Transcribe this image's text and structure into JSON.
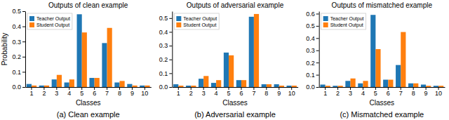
{
  "chart_data": [
    {
      "type": "bar",
      "title": "Outputs of clean example",
      "xlabel": "Classes",
      "ylabel": "Probability",
      "caption": "(a) Clean example",
      "categories": [
        1,
        2,
        3,
        4,
        5,
        6,
        7,
        8,
        9,
        10
      ],
      "series": [
        {
          "name": "Teacher Output",
          "color": "#1f77b4",
          "values": [
            0.02,
            0.01,
            0.05,
            0.03,
            0.48,
            0.06,
            0.29,
            0.03,
            0.02,
            0.01
          ]
        },
        {
          "name": "Student Output",
          "color": "#ff7f0e",
          "values": [
            0.01,
            0.01,
            0.08,
            0.05,
            0.36,
            0.06,
            0.39,
            0.04,
            0.01,
            0.01
          ]
        }
      ],
      "ylim": [
        0,
        0.5
      ],
      "yticks": [
        {
          "value": 0.0,
          "label": "0.0"
        },
        0.1,
        0.2,
        0.3,
        0.4,
        0.5
      ],
      "legend": "upper left"
    },
    {
      "type": "bar",
      "title": "Outputs of adversarial example",
      "xlabel": "Classes",
      "caption": "(b) Adversarial example",
      "categories": [
        1,
        2,
        3,
        4,
        5,
        6,
        7,
        8,
        9,
        10
      ],
      "series": [
        {
          "name": "Teacher Output",
          "color": "#1f77b4",
          "values": [
            0.02,
            0.01,
            0.06,
            0.03,
            0.25,
            0.05,
            0.51,
            0.02,
            0.02,
            0.01
          ]
        },
        {
          "name": "Student Output",
          "color": "#ff7f0e",
          "values": [
            0.01,
            0.01,
            0.08,
            0.05,
            0.23,
            0.05,
            0.53,
            0.02,
            0.01,
            0.01
          ]
        }
      ],
      "ylim": [
        0,
        0.55
      ],
      "yticks": [
        {
          "value": 0.0,
          "label": "0.0"
        },
        0.1,
        0.2,
        0.3,
        0.4,
        0.5
      ],
      "legend": "upper left"
    },
    {
      "type": "bar",
      "title": "Outputs of mismatched example",
      "xlabel": "Classes",
      "caption": "(c) Mismatched example",
      "categories": [
        1,
        2,
        3,
        4,
        5,
        6,
        7,
        8,
        9,
        10
      ],
      "series": [
        {
          "name": "Teacher Output",
          "color": "#1f77b4",
          "values": [
            0.02,
            0.01,
            0.05,
            0.03,
            0.59,
            0.06,
            0.18,
            0.03,
            0.02,
            0.01
          ]
        },
        {
          "name": "Student Output",
          "color": "#ff7f0e",
          "values": [
            0.01,
            0.01,
            0.07,
            0.05,
            0.31,
            0.06,
            0.45,
            0.03,
            0.01,
            0.01
          ]
        }
      ],
      "ylim": [
        0,
        0.62
      ],
      "yticks": [
        {
          "value": 0.0,
          "label": "0.0"
        },
        0.1,
        0.2,
        0.3,
        0.4,
        0.5,
        0.6
      ],
      "legend": "upper left"
    }
  ]
}
